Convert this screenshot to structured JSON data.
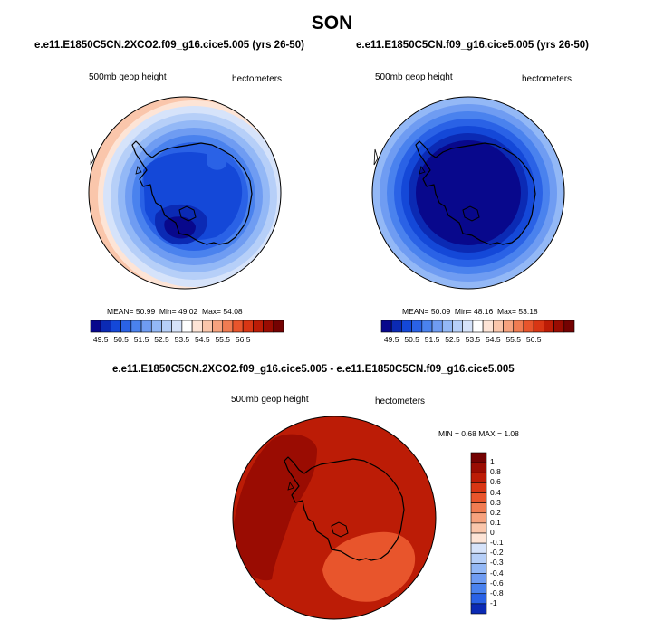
{
  "season_title": "SON",
  "palette": [
    "#08088c",
    "#0b2ab4",
    "#1448d8",
    "#2a62e6",
    "#4a82ee",
    "#6f9cf2",
    "#93b8f6",
    "#b6cff8",
    "#d6e3fa",
    "#ffffff",
    "#fde4d6",
    "#fac6ab",
    "#f6a27e",
    "#f07c52",
    "#e8552c",
    "#d83614",
    "#bc1c06",
    "#9a0c02",
    "#740202"
  ],
  "panels": [
    {
      "title": "e.e11.E1850C5CN.2XCO2.f09_g16.cice5.005 (yrs 26-50)",
      "variable": "500mb geop height",
      "units": "hectometers",
      "stats": {
        "mean_label": "MEAN=",
        "mean": "50.99",
        "min_label": "Min=",
        "min": "49.02",
        "max_label": "Max=",
        "max": "54.08"
      },
      "colorbar_labels": [
        "49.5",
        "50.5",
        "51.5",
        "52.5",
        "53.5",
        "54.5",
        "55.5",
        "56.5"
      ]
    },
    {
      "title": "e.e11.E1850C5CN.f09_g16.cice5.005 (yrs 26-50)",
      "variable": "500mb geop height",
      "units": "hectometers",
      "stats": {
        "mean_label": "MEAN=",
        "mean": "50.09",
        "min_label": "Min=",
        "min": "48.16",
        "max_label": "Max=",
        "max": "53.18"
      },
      "colorbar_labels": [
        "49.5",
        "50.5",
        "51.5",
        "52.5",
        "53.5",
        "54.5",
        "55.5",
        "56.5"
      ]
    },
    {
      "title": "e.e11.E1850C5CN.2XCO2.f09_g16.cice5.005 - e.e11.E1850C5CN.f09_g16.cice5.005",
      "variable": "500mb geop height",
      "units": "hectometers",
      "stats": {
        "min_label": "MIN =",
        "min": "0.68",
        "max_label": "MAX =",
        "max": "1.08"
      },
      "colorbar_labels": [
        "1",
        "0.8",
        "0.6",
        "0.4",
        "0.3",
        "0.2",
        "0.1",
        "0",
        "-0.1",
        "-0.2",
        "-0.3",
        "-0.4",
        "-0.6",
        "-0.8",
        "-1"
      ]
    }
  ],
  "chart_data": [
    {
      "type": "heatmap",
      "projection": "south-polar-stereographic",
      "field": "500mb geop height",
      "units": "hectometers",
      "mean": 50.99,
      "min": 49.02,
      "max": 54.08,
      "levels": [
        49.5,
        50,
        50.5,
        51,
        51.5,
        52,
        52.5,
        53,
        53.5,
        54,
        54.5,
        55,
        55.5,
        56,
        56.5
      ]
    },
    {
      "type": "heatmap",
      "projection": "south-polar-stereographic",
      "field": "500mb geop height",
      "units": "hectometers",
      "mean": 50.09,
      "min": 48.16,
      "max": 53.18,
      "levels": [
        49.5,
        50,
        50.5,
        51,
        51.5,
        52,
        52.5,
        53,
        53.5,
        54,
        54.5,
        55,
        55.5,
        56,
        56.5
      ]
    },
    {
      "type": "heatmap",
      "projection": "south-polar-stereographic",
      "field": "500mb geop height difference",
      "units": "hectometers",
      "min": 0.68,
      "max": 1.08,
      "levels": [
        -1,
        -0.8,
        -0.6,
        -0.4,
        -0.3,
        -0.2,
        -0.1,
        0,
        0.1,
        0.2,
        0.3,
        0.4,
        0.6,
        0.8,
        1
      ]
    }
  ]
}
